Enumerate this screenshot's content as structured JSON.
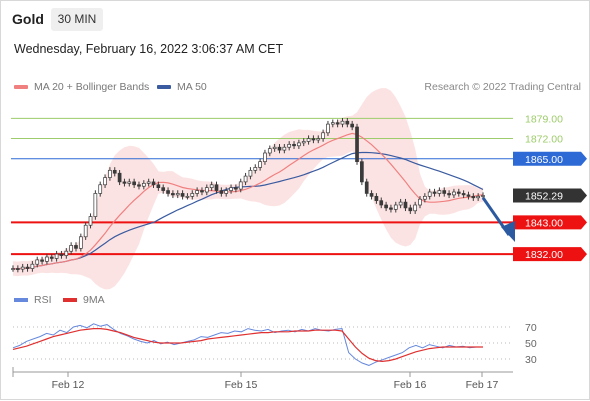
{
  "header": {
    "instrument": "Gold",
    "timeframe": "30 MIN",
    "datetime": "Wednesday, February 16, 2022 3:06:37 AM CET"
  },
  "legend": {
    "ma20_label": "MA 20 + Bollinger Bands",
    "ma50_label": "MA 50",
    "credit": "Research © 2022 Trading Central",
    "rsi_label": "RSI",
    "ma9_label": "9MA"
  },
  "colors": {
    "candle": "#3a3a3a",
    "ma20": "#f08080",
    "ma50": "#3a5ba0",
    "bollinger_fill": "#fcdede",
    "resistance_faint": "#9dcc6a",
    "pivot_blue": "#2d6ad6",
    "support_red": "#ee1111",
    "current_price_bg": "#333333",
    "rsi_line": "#6688dd",
    "ma9_line": "#e03030",
    "arrow": "#2c5aa0"
  },
  "chart_data": {
    "type": "line",
    "title": "",
    "x_tick_labels": [
      "Feb 12",
      "Feb 15",
      "Feb 16",
      "Feb 17"
    ],
    "price_levels": [
      {
        "value": 1879.0,
        "label": "1879.00",
        "kind": "resistance-faint"
      },
      {
        "value": 1872.0,
        "label": "1872.00",
        "kind": "resistance-faint"
      },
      {
        "value": 1865.0,
        "label": "1865.00",
        "kind": "pivot"
      },
      {
        "value": 1852.29,
        "label": "1852.29",
        "kind": "current"
      },
      {
        "value": 1843.0,
        "label": "1843.00",
        "kind": "support"
      },
      {
        "value": 1832.0,
        "label": "1832.00",
        "kind": "support"
      }
    ],
    "price_axis_range": [
      1822,
      1885
    ],
    "price_series": [
      1827.0,
      1826.8,
      1827.5,
      1827.0,
      1828.5,
      1830.0,
      1829.5,
      1831.0,
      1830.5,
      1832.0,
      1831.5,
      1833.0,
      1835.0,
      1834.0,
      1838.0,
      1842.0,
      1845.0,
      1853.0,
      1856.0,
      1858.5,
      1861.0,
      1860.0,
      1857.0,
      1856.5,
      1857.0,
      1856.0,
      1855.5,
      1856.5,
      1857.0,
      1856.0,
      1855.0,
      1854.0,
      1853.0,
      1852.5,
      1853.0,
      1852.0,
      1852.0,
      1853.0,
      1854.0,
      1853.5,
      1855.0,
      1856.0,
      1854.0,
      1853.0,
      1854.0,
      1855.0,
      1854.5,
      1857.0,
      1859.0,
      1861.0,
      1862.0,
      1864.0,
      1867.0,
      1868.5,
      1869.0,
      1868.0,
      1869.0,
      1870.0,
      1869.5,
      1870.5,
      1871.0,
      1872.0,
      1871.5,
      1872.0,
      1874.0,
      1877.0,
      1877.5,
      1877.0,
      1878.0,
      1877.0,
      1876.0,
      1864.0,
      1857.0,
      1853.0,
      1852.0,
      1850.5,
      1849.0,
      1848.0,
      1847.5,
      1849.0,
      1850.0,
      1848.0,
      1847.0,
      1849.0,
      1851.0,
      1852.0,
      1853.5,
      1853.0,
      1854.0,
      1853.0,
      1852.5,
      1853.5,
      1853.0,
      1852.5,
      1852.0,
      1851.5,
      1852.0,
      1852.29
    ],
    "rsi_levels": [
      70,
      50,
      30
    ],
    "rsi_range": [
      20,
      80
    ],
    "rsi_series": [
      44,
      47,
      52,
      55,
      58,
      62,
      60,
      66,
      63,
      70,
      72,
      69,
      74,
      71,
      73,
      67,
      62,
      59,
      55,
      52,
      50,
      53,
      49,
      51,
      48,
      50,
      52,
      54,
      58,
      57,
      60,
      63,
      62,
      65,
      64,
      68,
      66,
      65,
      67,
      63,
      65,
      66,
      64,
      67,
      65,
      68,
      66,
      65,
      67,
      68,
      38,
      30,
      25,
      22,
      26,
      29,
      32,
      35,
      38,
      44,
      47,
      44,
      48,
      46,
      44,
      47,
      45,
      46,
      44,
      45,
      45
    ],
    "ma9_series": [
      42,
      44,
      46,
      49,
      52,
      55,
      58,
      60,
      62,
      64,
      66,
      67,
      68,
      68,
      67,
      65,
      63,
      60,
      57,
      55,
      53,
      51,
      50,
      50,
      50,
      50,
      51,
      52,
      53,
      55,
      56,
      57,
      58,
      59,
      60,
      61,
      62,
      63,
      63,
      64,
      64,
      64,
      65,
      65,
      65,
      66,
      66,
      66,
      66,
      65,
      55,
      45,
      37,
      31,
      28,
      27,
      28,
      30,
      33,
      36,
      39,
      41,
      43,
      44,
      45,
      45,
      45,
      45,
      45,
      45,
      45
    ]
  }
}
